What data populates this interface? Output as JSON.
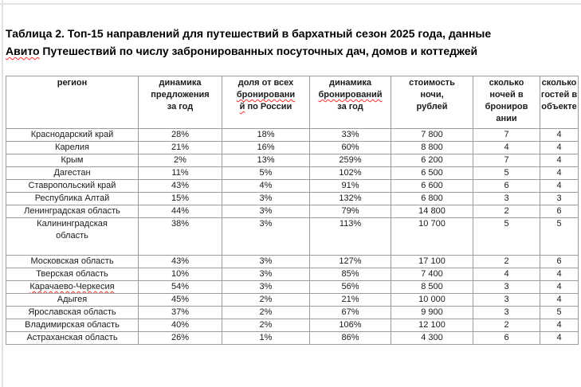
{
  "colors": {
    "text": "#1a1a1a",
    "table_border": "#9c9c9c",
    "spellcheck_underline": "#ff2a2a",
    "page_edge_line": "#e3e3e3"
  },
  "title": {
    "segments": [
      {
        "t": "Таблица 2. Топ-15 направлений для путешествий в бархатный сезон 2025 года, данные"
      },
      {
        "br": true
      },
      {
        "t": "Авито",
        "sp": true
      },
      {
        "t": " Путешествий по числу забронированных посуточных дач, домов и коттеджей"
      }
    ]
  },
  "table": {
    "headers": [
      {
        "lines": [
          [
            {
              "t": "регион"
            }
          ]
        ]
      },
      {
        "lines": [
          [
            {
              "t": "динамика"
            }
          ],
          [
            {
              "t": "предложения"
            }
          ],
          [
            {
              "t": "за год"
            }
          ]
        ]
      },
      {
        "lines": [
          [
            {
              "t": "доля от всех"
            }
          ],
          [
            {
              "t": "бронировани",
              "sp": true
            }
          ],
          [
            {
              "t": "й",
              "sp": true
            },
            {
              "t": " по России"
            }
          ]
        ]
      },
      {
        "lines": [
          [
            {
              "t": "динамика"
            }
          ],
          [
            {
              "t": "бронирований",
              "sp": true
            }
          ],
          [
            {
              "t": "за год"
            }
          ]
        ]
      },
      {
        "lines": [
          [
            {
              "t": "стоимость"
            }
          ],
          [
            {
              "t": "ночи,"
            }
          ],
          [
            {
              "t": "рублей"
            }
          ]
        ]
      },
      {
        "lines": [
          [
            {
              "t": "сколько"
            }
          ],
          [
            {
              "t": "ночей в"
            }
          ],
          [
            {
              "t": "брониров"
            }
          ],
          [
            {
              "t": "ании"
            }
          ]
        ]
      },
      {
        "lines": [
          [
            {
              "t": "сколько"
            }
          ],
          [
            {
              "t": "гостей в"
            }
          ],
          [
            {
              "t": "объекте"
            }
          ]
        ]
      }
    ],
    "rows": [
      {
        "region": [
          [
            {
              "t": "Краснодарский край"
            }
          ]
        ],
        "values": [
          "28%",
          "18%",
          "33%",
          "7 800",
          "7",
          "4"
        ]
      },
      {
        "region": [
          [
            {
              "t": "Карелия"
            }
          ]
        ],
        "values": [
          "21%",
          "16%",
          "60%",
          "8 800",
          "4",
          "4"
        ]
      },
      {
        "region": [
          [
            {
              "t": "Крым"
            }
          ]
        ],
        "values": [
          "2%",
          "13%",
          "259%",
          "6 200",
          "7",
          "4"
        ]
      },
      {
        "region": [
          [
            {
              "t": "Дагестан"
            }
          ]
        ],
        "values": [
          "11%",
          "5%",
          "102%",
          "6 500",
          "5",
          "4"
        ]
      },
      {
        "region": [
          [
            {
              "t": "Ставропольский край"
            }
          ]
        ],
        "values": [
          "43%",
          "4%",
          "91%",
          "6 600",
          "6",
          "4"
        ]
      },
      {
        "region": [
          [
            {
              "t": "Республика Алтай"
            }
          ]
        ],
        "values": [
          "15%",
          "3%",
          "132%",
          "6 800",
          "3",
          "3"
        ]
      },
      {
        "region": [
          [
            {
              "t": "Ленинградская область"
            }
          ]
        ],
        "values": [
          "44%",
          "3%",
          "79%",
          "14 800",
          "2",
          "6"
        ]
      },
      {
        "region": [
          [
            {
              "t": "Калининградская"
            }
          ],
          [
            {
              "t": "область"
            }
          ]
        ],
        "tall": true,
        "values": [
          "38%",
          "3%",
          "113%",
          "10 700",
          "5",
          "5"
        ]
      },
      {
        "region": [
          [
            {
              "t": "Московская область"
            }
          ]
        ],
        "values": [
          "43%",
          "3%",
          "127%",
          "17 100",
          "2",
          "6"
        ]
      },
      {
        "region": [
          [
            {
              "t": "Тверская область"
            }
          ]
        ],
        "values": [
          "10%",
          "3%",
          "85%",
          "7 400",
          "4",
          "4"
        ]
      },
      {
        "region": [
          [
            {
              "t": "Карачаево-Черкесия",
              "sp": true
            }
          ]
        ],
        "values": [
          "54%",
          "3%",
          "56%",
          "8 500",
          "3",
          "4"
        ]
      },
      {
        "region": [
          [
            {
              "t": "Адыгея"
            }
          ]
        ],
        "values": [
          "45%",
          "2%",
          "21%",
          "10 000",
          "3",
          "4"
        ]
      },
      {
        "region": [
          [
            {
              "t": "Ярославская область"
            }
          ]
        ],
        "values": [
          "37%",
          "2%",
          "67%",
          "9 900",
          "3",
          "5"
        ]
      },
      {
        "region": [
          [
            {
              "t": "Владимирская область"
            }
          ]
        ],
        "values": [
          "40%",
          "2%",
          "106%",
          "12 100",
          "2",
          "4"
        ]
      },
      {
        "region": [
          [
            {
              "t": "Астраханская область"
            }
          ]
        ],
        "values": [
          "26%",
          "1%",
          "86%",
          "4 300",
          "6",
          "4"
        ]
      }
    ]
  }
}
